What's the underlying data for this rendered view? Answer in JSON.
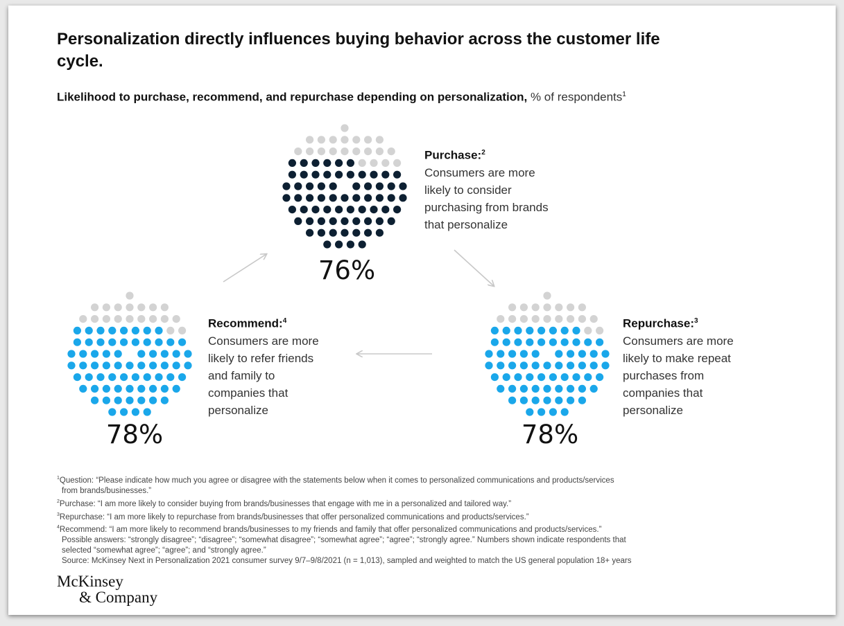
{
  "title": "Personalization directly influences buying behavior across the customer life cycle.",
  "subtitle": {
    "bold": "Likelihood to purchase, recommend, and repurchase depending on personalization,",
    "normal": "% of respondents",
    "sup": "1"
  },
  "colors": {
    "purchase": "#0d2032",
    "recommend": "#1aa7ea",
    "repurchase": "#1aa7ea",
    "remainder": "#d3d3d3",
    "arrow": "#c8c8c8"
  },
  "chart_data": {
    "type": "pie",
    "unit": "% of respondents",
    "items": [
      {
        "label": "Purchase:",
        "sup": "2",
        "value": 76,
        "display": "76%",
        "description": "Consumers are more\nlikely to consider\npurchasing from brands\nthat personalize"
      },
      {
        "label": "Repurchase:",
        "sup": "3",
        "value": 78,
        "display": "78%",
        "description": "Consumers are more\nlikely to make repeat\npurchases from\ncompanies that\npersonalize"
      },
      {
        "label": "Recommend:",
        "sup": "4",
        "value": 78,
        "display": "78%",
        "description": "Consumers are more\nlikely to refer friends\nand family to\ncompanies that\npersonalize"
      }
    ]
  },
  "footnotes": [
    {
      "sup": "1",
      "lines": [
        "Question: “Please indicate how much you agree or disagree with the statements below when it comes to personalized communications and products/services",
        "from brands/businesses.”"
      ]
    },
    {
      "sup": "2",
      "lines": [
        "Purchase: “I am more likely to consider buying from brands/businesses that engage with me in a personalized and tailored way.”"
      ]
    },
    {
      "sup": "3",
      "lines": [
        "Repurchase: “I am more likely to repurchase from brands/businesses that offer personalized communications and products/services.”"
      ]
    },
    {
      "sup": "4",
      "lines": [
        "Recommend: “I am more likely to recommend brands/businesses to my friends and family that offer personalized communications and products/services.”",
        "Possible answers: “strongly disagree”; “disagree”; “somewhat disagree”; “somewhat agree”; “agree”; “strongly agree.” Numbers shown indicate respondents that",
        "selected “somewhat agree”; “agree”; and “strongly agree.”",
        "Source: McKinsey Next in Personalization 2021 consumer survey 9/7–9/8/2021 (n = 1,013), sampled and weighted to match the US general population 18+ years"
      ]
    }
  ],
  "logo": {
    "line1": "McKinsey",
    "line2": "& Company"
  }
}
